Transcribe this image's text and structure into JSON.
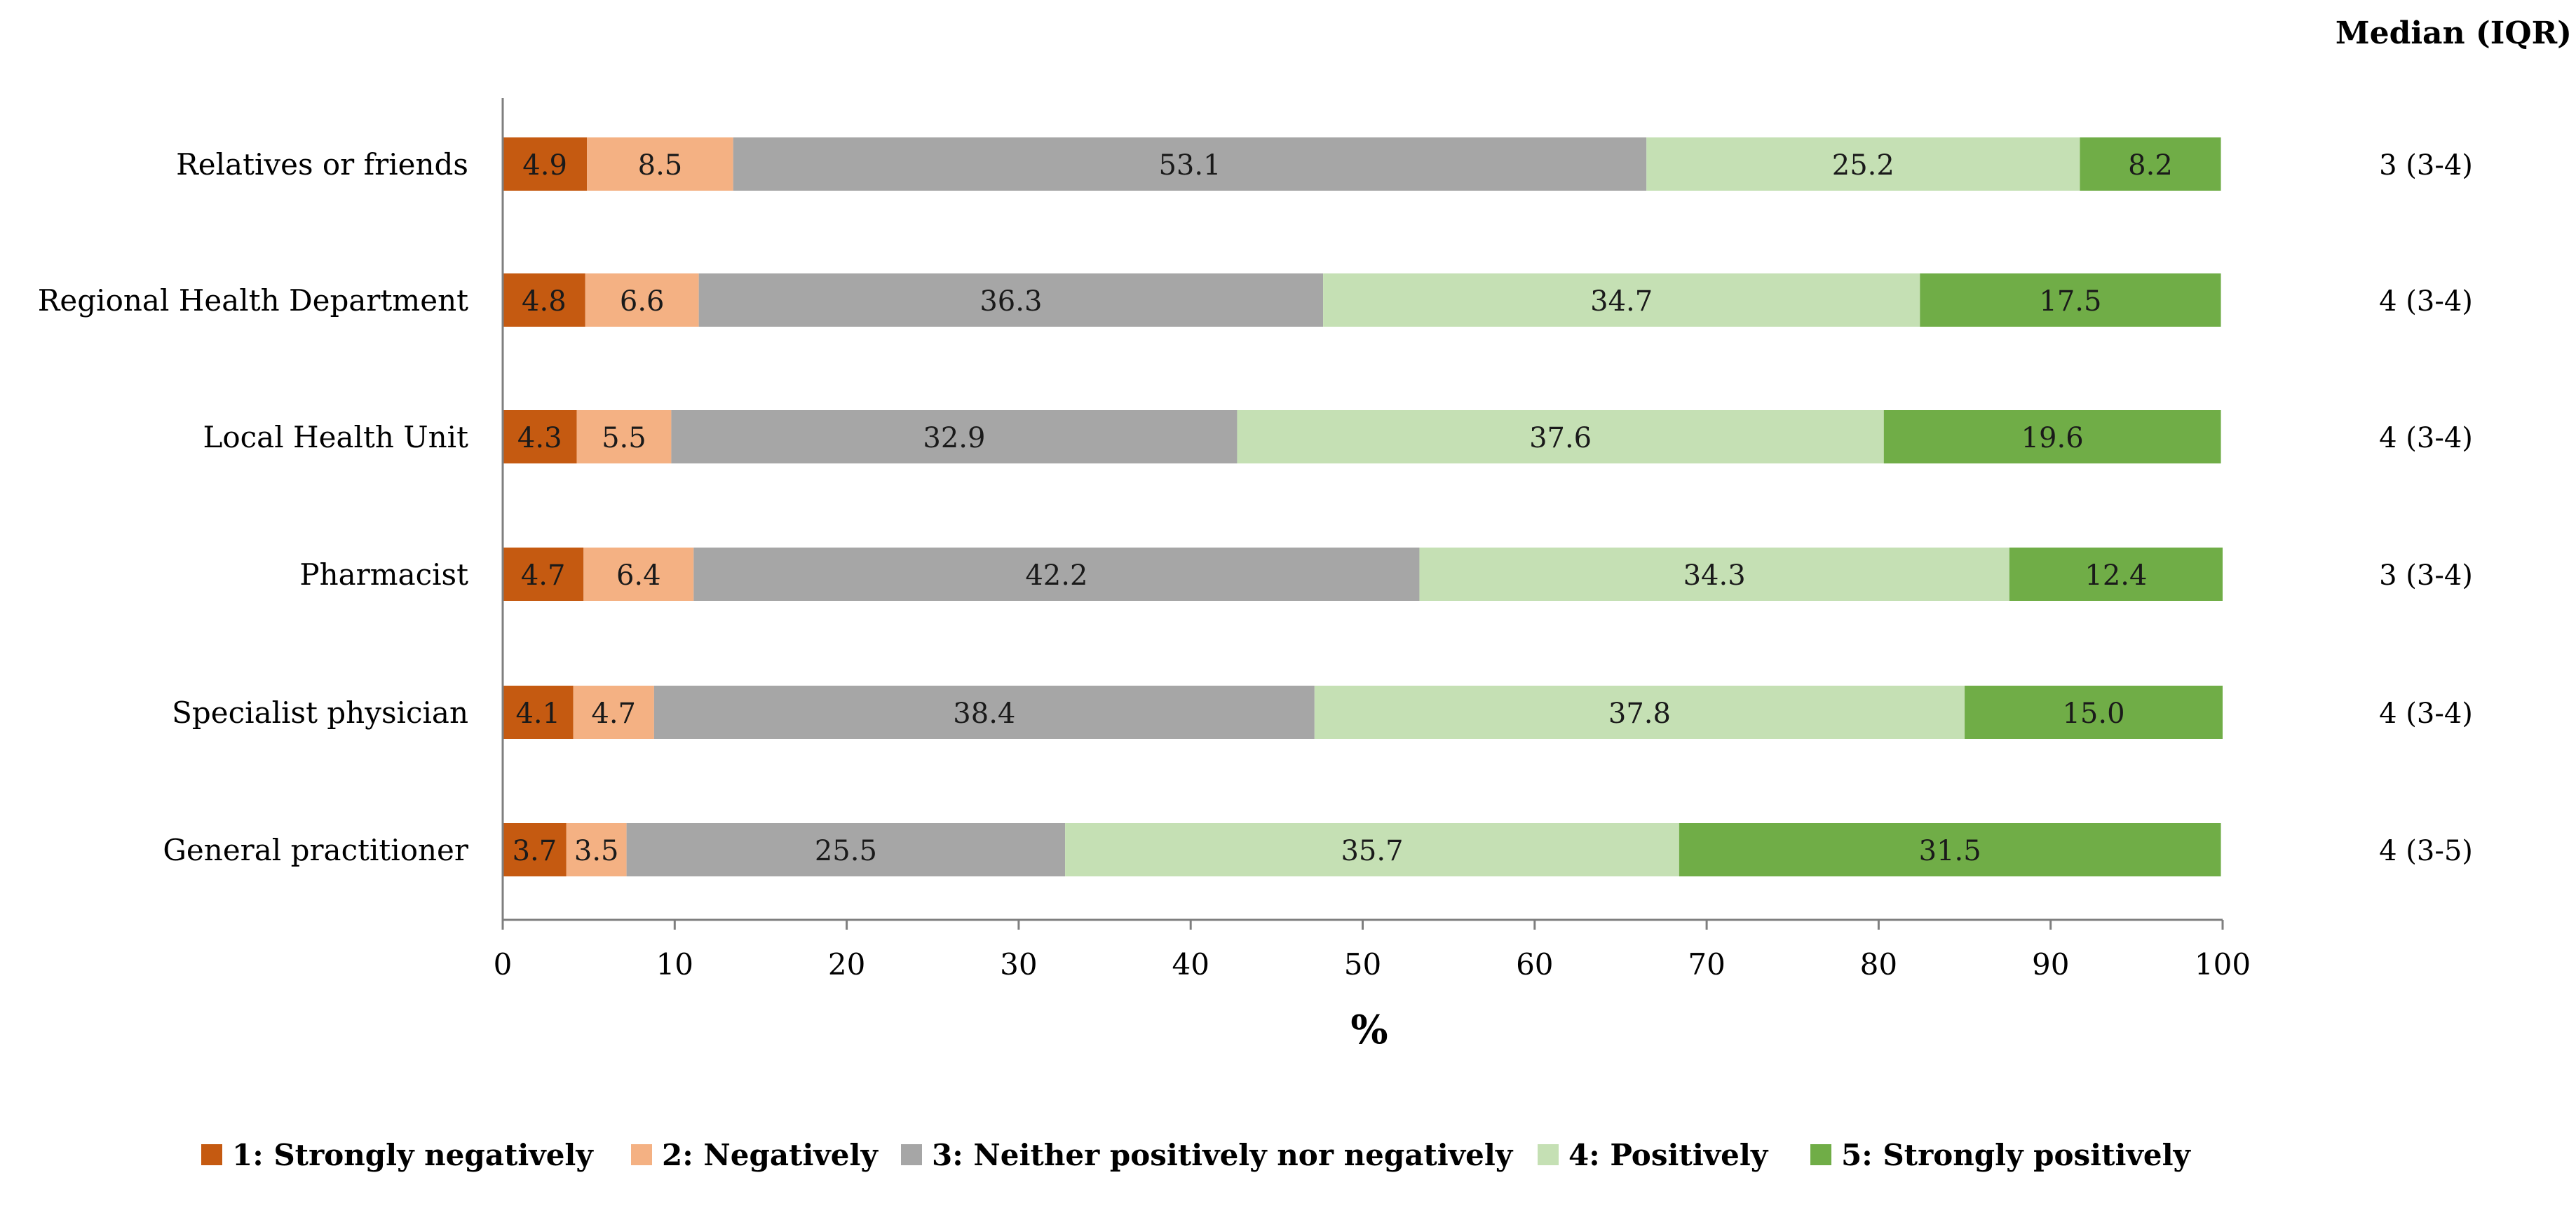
{
  "chart_data": {
    "type": "bar",
    "orientation": "horizontal",
    "stacked": true,
    "xlabel": "%",
    "xlim": [
      0,
      100
    ],
    "xticks": [
      0,
      10,
      20,
      30,
      40,
      50,
      60,
      70,
      80,
      90,
      100
    ],
    "grid": false,
    "median_header": "Median (IQR)",
    "categories": [
      "Relatives or friends",
      "Regional Health Department",
      "Local Health Unit",
      "Pharmacist",
      "Specialist physician",
      "General practitioner"
    ],
    "medians": [
      "3 (3-4)",
      "4 (3-4)",
      "4 (3-4)",
      "3 (3-4)",
      "4 (3-4)",
      "4 (3-5)"
    ],
    "series": [
      {
        "name": "1: Strongly negatively",
        "color": "#C55A11",
        "label_color": "#1a1a1a",
        "values": [
          4.9,
          4.8,
          4.3,
          4.7,
          4.1,
          3.7
        ],
        "labels": [
          "4.9",
          "4.8",
          "4.3",
          "4.7",
          "4.1",
          "3.7"
        ]
      },
      {
        "name": "2: Negatively",
        "color": "#F4B183",
        "label_color": "#1a1a1a",
        "values": [
          8.5,
          6.6,
          5.5,
          6.4,
          4.7,
          3.5
        ],
        "labels": [
          "8.5",
          "6.6",
          "5.5",
          "6.4",
          "4.7",
          "3.5"
        ]
      },
      {
        "name": "3: Neither positively nor negatively",
        "color": "#A6A6A6",
        "label_color": "#1a1a1a",
        "values": [
          53.1,
          36.3,
          32.9,
          42.2,
          38.4,
          25.5
        ],
        "labels": [
          "53.1",
          "36.3",
          "32.9",
          "42.2",
          "38.4",
          "25.5"
        ]
      },
      {
        "name": "4: Positively",
        "color": "#C5E0B4",
        "label_color": "#1a1a1a",
        "values": [
          25.2,
          34.7,
          37.6,
          34.3,
          37.8,
          35.7
        ],
        "labels": [
          "25.2",
          "34.7",
          "37.6",
          "34.3",
          "37.8",
          "35.7"
        ]
      },
      {
        "name": "5: Strongly positively",
        "color": "#70AD47",
        "label_color": "#1a1a1a",
        "values": [
          8.2,
          17.5,
          19.6,
          12.4,
          15.0,
          31.5
        ],
        "labels": [
          "8.2",
          "17.5",
          "19.6",
          "12.4",
          "15.0",
          "31.5"
        ]
      }
    ],
    "legend_position": "bottom"
  }
}
